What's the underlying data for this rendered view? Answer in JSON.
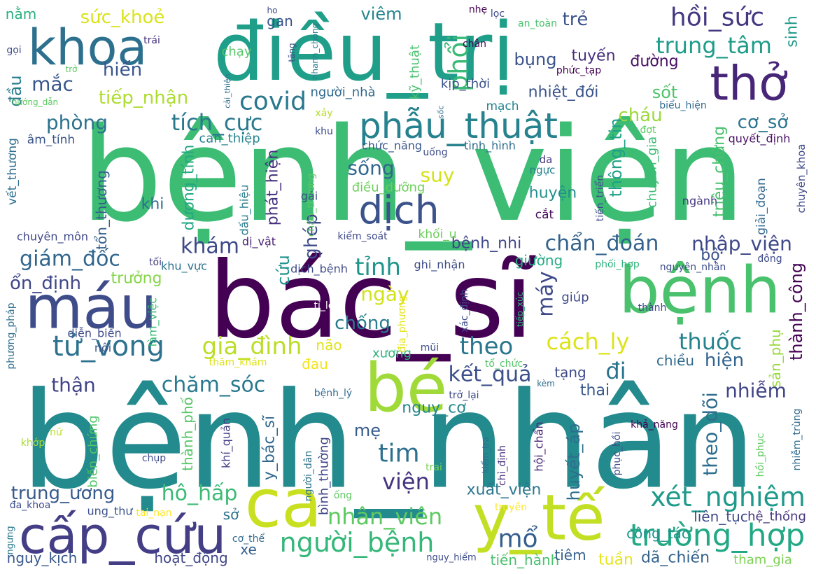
{
  "words": [
    {
      "text": "bệnh_viện",
      "color": "#3dbc74"
    },
    {
      "text": "bệnh_nhân",
      "color": "#238a8d"
    },
    {
      "text": "bác_sĩ",
      "color": "#440154"
    },
    {
      "text": "điều_trị",
      "color": "#1f9e89"
    },
    {
      "text": "bệnh",
      "color": "#4ac16d"
    },
    {
      "text": "bé",
      "color": "#a0da39"
    },
    {
      "text": "ca",
      "color": "#c8e020"
    },
    {
      "text": "y_tế",
      "color": "#c2df23"
    },
    {
      "text": "máu",
      "color": "#3e4c8a"
    },
    {
      "text": "thở",
      "color": "#482677"
    },
    {
      "text": "cấp_cứu",
      "color": "#433e85"
    },
    {
      "text": "khoa",
      "color": "#2d708e"
    },
    {
      "text": "dịch",
      "color": "#3b528b"
    },
    {
      "text": "phẫu_thuật",
      "color": "#26828e"
    },
    {
      "text": "trường_hợp",
      "color": "#22a884"
    },
    {
      "text": "tử_vong",
      "color": "#2c728e"
    },
    {
      "text": "xét_nghiệm",
      "color": "#1f9a8a"
    },
    {
      "text": "người_bệnh",
      "color": "#35b779"
    },
    {
      "text": "hồi_sức",
      "color": "#453781"
    },
    {
      "text": "trung_tâm",
      "color": "#1e9c89"
    },
    {
      "text": "phổi",
      "color": "#3aba76"
    },
    {
      "text": "gia_đình",
      "color": "#bade28"
    },
    {
      "text": "cách_ly",
      "color": "#dde318"
    },
    {
      "text": "covid",
      "color": "#2a788e"
    },
    {
      "text": "giám_đốc",
      "color": "#31668e"
    },
    {
      "text": "chẩn_đoán",
      "color": "#33638d"
    },
    {
      "text": "nhập_viện",
      "color": "#3f4889"
    },
    {
      "text": "tích_cực",
      "color": "#29798e"
    },
    {
      "text": "nhân_viên",
      "color": "#5ec962"
    },
    {
      "text": "tỉnh",
      "color": "#1f968b"
    },
    {
      "text": "mổ",
      "color": "#355f8d"
    },
    {
      "text": "theo",
      "color": "#2a768e"
    },
    {
      "text": "thuốc",
      "color": "#25838e"
    },
    {
      "text": "chăm_sóc",
      "color": "#297a8e"
    },
    {
      "text": "kết_quả",
      "color": "#3c4f8a"
    },
    {
      "text": "tim",
      "color": "#2d708e"
    },
    {
      "text": "viện",
      "color": "#46337f"
    },
    {
      "text": "đi",
      "color": "#2b748e"
    },
    {
      "text": "hô_hấp",
      "color": "#3bbb75"
    },
    {
      "text": "trung_ương",
      "color": "#375a8c"
    },
    {
      "text": "tiếp_nhận",
      "color": "#addc30"
    },
    {
      "text": "sức_khoẻ",
      "color": "#dae319"
    },
    {
      "text": "phòng",
      "color": "#2c718e"
    },
    {
      "text": "mắc",
      "color": "#38588c"
    },
    {
      "text": "đầu",
      "color": "#287d8e"
    },
    {
      "text": "hiến",
      "color": "#39568c"
    },
    {
      "text": "sống",
      "color": "#31668e"
    },
    {
      "text": "suy",
      "color": "#d5e21a"
    },
    {
      "text": "ngày",
      "color": "#d2e21b"
    },
    {
      "text": "chống",
      "color": "#287c8e"
    },
    {
      "text": "khám",
      "color": "#3e4989"
    },
    {
      "text": "ghép",
      "color": "#3e4c8a"
    },
    {
      "text": "máy",
      "color": "#3e4989"
    },
    {
      "text": "thận",
      "color": "#414487"
    },
    {
      "text": "nhiễm",
      "color": "#404588"
    },
    {
      "text": "theo_dõi",
      "color": "#2e6e8e"
    },
    {
      "text": "huyết_áp",
      "color": "#2e6f8e"
    },
    {
      "text": "hiện",
      "color": "#32648e"
    },
    {
      "text": "ổn_định",
      "color": "#3f4788"
    },
    {
      "text": "trưởng",
      "color": "#86d549"
    },
    {
      "text": "cơ_sở",
      "color": "#2b758e"
    },
    {
      "text": "cháu",
      "color": "#9bd93c"
    },
    {
      "text": "sốt",
      "color": "#4ec36b"
    },
    {
      "text": "trẻ",
      "color": "#3b528b"
    },
    {
      "text": "viêm",
      "color": "#25848e"
    },
    {
      "text": "bụng",
      "color": "#3b528b"
    },
    {
      "text": "tuyến",
      "color": "#472d7b"
    },
    {
      "text": "đường",
      "color": "#471164"
    },
    {
      "text": "sinh",
      "color": "#1f998a"
    },
    {
      "text": "nhiệt_đới",
      "color": "#3a548c"
    },
    {
      "text": "thông_tin",
      "color": "#1fa188"
    },
    {
      "text": "thành_công",
      "color": "#440154"
    },
    {
      "text": "bệnh_nhi",
      "color": "#3f4889"
    },
    {
      "text": "xuất_viện",
      "color": "#2a768e"
    },
    {
      "text": "thai",
      "color": "#38588c"
    },
    {
      "text": "mẹ",
      "color": "#365c8d"
    },
    {
      "text": "nguy_cơ",
      "color": "#25858e"
    },
    {
      "text": "tiến_hành",
      "color": "#4ac16d"
    },
    {
      "text": "dã_chiến",
      "color": "#33638d"
    },
    {
      "text": "tuần",
      "color": "#e5e419"
    },
    {
      "text": "hoạt_động",
      "color": "#404688"
    },
    {
      "text": "nguy_kịch",
      "color": "#38588c"
    },
    {
      "text": "xe",
      "color": "#355f8d"
    },
    {
      "text": "sở",
      "color": "#2d718e"
    },
    {
      "text": "tiêm",
      "color": "#34618d"
    },
    {
      "text": "liên_tục",
      "color": "#3e4a89"
    },
    {
      "text": "công_tác",
      "color": "#20928c"
    },
    {
      "text": "hệ_thống",
      "color": "#46337e"
    },
    {
      "text": "tham_gia",
      "color": "#7ad151"
    },
    {
      "text": "y_bác_sĩ",
      "color": "#31688e"
    },
    {
      "text": "thành_phố",
      "color": "#56c667"
    },
    {
      "text": "dương_tính",
      "color": "#22a884"
    },
    {
      "text": "phát_hiện",
      "color": "#46307e"
    },
    {
      "text": "triệu_chứng",
      "color": "#4ac16d"
    },
    {
      "text": "giường",
      "color": "#25ab82"
    },
    {
      "text": "bộ",
      "color": "#3b528b"
    },
    {
      "text": "cứu",
      "color": "#20928c"
    },
    {
      "text": "huyện",
      "color": "#218f8d"
    },
    {
      "text": "khi",
      "color": "#2e6d8e"
    },
    {
      "text": "tổn_thương",
      "color": "#355f8d"
    },
    {
      "text": "chiều",
      "color": "#306a8e"
    },
    {
      "text": "tạng",
      "color": "#3e4c8a"
    },
    {
      "text": "sản_phụ",
      "color": "#99d83d"
    },
    {
      "text": "đau",
      "color": "#f1e51d"
    },
    {
      "text": "não",
      "color": "#dfe318"
    },
    {
      "text": "nằm",
      "color": "#29af7f"
    },
    {
      "text": "gan",
      "color": "#3b528b"
    },
    {
      "text": "xương",
      "color": "#2fb47c"
    },
    {
      "text": "kỹ_thuật",
      "color": "#4ac16d"
    },
    {
      "text": "kịp_thời",
      "color": "#3b528b"
    },
    {
      "text": "mạch",
      "color": "#26828e"
    },
    {
      "text": "người_nhà",
      "color": "#306a8e"
    },
    {
      "text": "chạy",
      "color": "#56c667"
    },
    {
      "text": "can_thiệp",
      "color": "#26828e"
    },
    {
      "text": "vết_thương",
      "color": "#2e6e8e"
    },
    {
      "text": "âm_tính",
      "color": "#3a538b"
    },
    {
      "text": "chức_năng",
      "color": "#39568c"
    },
    {
      "text": "điều_dưỡng",
      "color": "#6ccd5a"
    },
    {
      "text": "khối_u",
      "color": "#6ccd5a"
    },
    {
      "text": "giải_đoạn",
      "color": "#31688e"
    },
    {
      "text": "chuyên_khoa",
      "color": "#3e4a89"
    },
    {
      "text": "quyết_định",
      "color": "#471063"
    },
    {
      "text": "tình_hình",
      "color": "#2e6e8e"
    },
    {
      "text": "ngành",
      "color": "#453781"
    },
    {
      "text": "ngực",
      "color": "#26828e"
    },
    {
      "text": "cắt",
      "color": "#46085c"
    },
    {
      "text": "da",
      "color": "#453882"
    },
    {
      "text": "chuyên_gia",
      "color": "#3bbb75"
    },
    {
      "text": "tiến_triển",
      "color": "#3e4c8a"
    },
    {
      "text": "chuyên_môn",
      "color": "#3f4788"
    },
    {
      "text": "dấu_hiệu",
      "color": "#287c8e"
    },
    {
      "text": "dị_vật",
      "color": "#482173"
    },
    {
      "text": "kiểm_soát",
      "color": "#3e4a89"
    },
    {
      "text": "chấn_thương",
      "color": "#5ec962"
    },
    {
      "text": "gái",
      "color": "#3e4c8a"
    },
    {
      "text": "dịch_bệnh",
      "color": "#3e4989"
    },
    {
      "text": "ghi_nhận",
      "color": "#3e4c8a"
    },
    {
      "text": "khu_vực",
      "color": "#2c738e"
    },
    {
      "text": "tối",
      "color": "#433e85"
    },
    {
      "text": "làm_việc",
      "color": "#3bbb75"
    },
    {
      "text": "diễn_biến",
      "color": "#3e4c8a"
    },
    {
      "text": "phương_pháp",
      "color": "#2e6e8e"
    },
    {
      "text": "tỉ_lệ",
      "color": "#ffffff"
    },
    {
      "text": "địa_phương",
      "color": "#e5e419"
    },
    {
      "text": "xác_định",
      "color": "#3e4c8a"
    },
    {
      "text": "tiếp_xúc",
      "color": "#32b67a"
    },
    {
      "text": "giúp",
      "color": "#3e4989"
    },
    {
      "text": "thành",
      "color": "#404588"
    },
    {
      "text": "phối_hợp",
      "color": "#2fb47c"
    },
    {
      "text": "nguyên_nhân",
      "color": "#3e4c8a"
    },
    {
      "text": "đông",
      "color": "#3e4a89"
    },
    {
      "text": "mũi",
      "color": "#3e4c8a"
    },
    {
      "text": "thăm_khám",
      "color": "#dde318"
    },
    {
      "text": "tổ_chức",
      "color": "#54c568"
    },
    {
      "text": "nội",
      "color": "#3b528b"
    },
    {
      "text": "kèm",
      "color": "#2e6e8e"
    },
    {
      "text": "khả_năng",
      "color": "#440154"
    },
    {
      "text": "nhiễm_trùng",
      "color": "#306a8e"
    },
    {
      "text": "hồi_phục",
      "color": "#5ec962"
    },
    {
      "text": "phục_hồi",
      "color": "#3e4c8a"
    },
    {
      "text": "kiểm_tra",
      "color": "#2e6e8e"
    },
    {
      "text": "chỉ_định",
      "color": "#46327e"
    },
    {
      "text": "hội_chẩn",
      "color": "#482475"
    },
    {
      "text": "trở_lại",
      "color": "#3e4989"
    },
    {
      "text": "bệnh_lý",
      "color": "#306a8e"
    },
    {
      "text": "bình_thường",
      "color": "#404688"
    },
    {
      "text": "người_dân",
      "color": "#2c728e"
    },
    {
      "text": "khí_quản",
      "color": "#433e85"
    },
    {
      "text": "biến_chứng",
      "color": "#52c569"
    },
    {
      "text": "chụp",
      "color": "#3e4c8a"
    },
    {
      "text": "ung_thư",
      "color": "#3b528b"
    },
    {
      "text": "tai_nạn",
      "color": "#fde725"
    },
    {
      "text": "đa_khoa",
      "color": "#3e4c8a"
    },
    {
      "text": "khớp",
      "color": "#aadc32"
    },
    {
      "text": "nữ",
      "color": "#bddf26"
    },
    {
      "text": "ngưng",
      "color": "#2a788e"
    },
    {
      "text": "cơ_thể",
      "color": "#306a8e"
    },
    {
      "text": "ống",
      "color": "#5ec962"
    },
    {
      "text": "trai",
      "color": "#7ad151"
    },
    {
      "text": "truyền",
      "color": "#fde725"
    },
    {
      "text": "nguy_hiểm",
      "color": "#3e4c8a"
    },
    {
      "text": "ho",
      "color": "#3e4c8a"
    },
    {
      "text": "nhẹ",
      "color": "#440154"
    },
    {
      "text": "lọc",
      "color": "#3e4989"
    },
    {
      "text": "an_toàn",
      "color": "#4ac16d"
    },
    {
      "text": "nhanh_chóng",
      "color": "#287c8e"
    },
    {
      "text": "tăng",
      "color": "#3e4c8a"
    },
    {
      "text": "trái",
      "color": "#46337f"
    },
    {
      "text": "gọi",
      "color": "#3e4c8a"
    },
    {
      "text": "trở",
      "color": "#5ec962"
    },
    {
      "text": "cải_thiện",
      "color": "#2e6e8e"
    },
    {
      "text": "hướng_dẫn",
      "color": "#5ec962"
    },
    {
      "text": "sốc",
      "color": "#306a8e"
    },
    {
      "text": "xảy",
      "color": "#b5de2b"
    },
    {
      "text": "khu",
      "color": "#3e4c8a"
    },
    {
      "text": "uống",
      "color": "#3e4c8a"
    },
    {
      "text": "chân",
      "color": "#440154"
    },
    {
      "text": "phức_tạp",
      "color": "#440154"
    },
    {
      "text": "biểu_hiện",
      "color": "#306a8e"
    },
    {
      "text": "đợt",
      "color": "#5ec962"
    }
  ]
}
